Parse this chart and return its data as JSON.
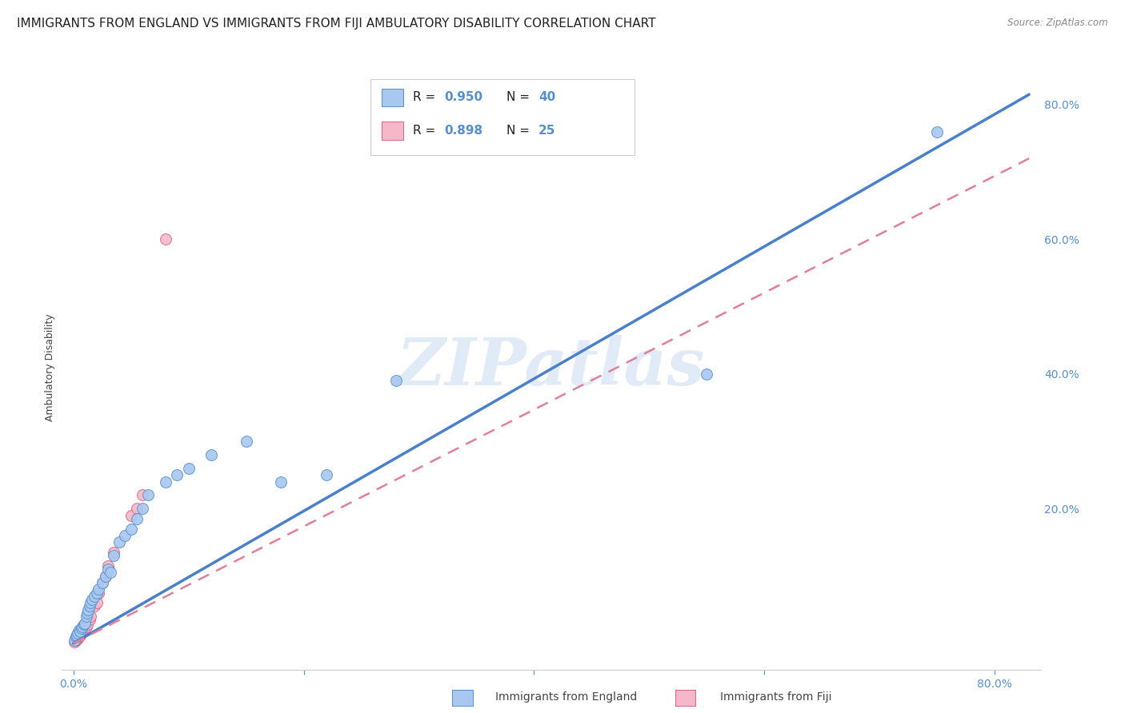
{
  "title": "IMMIGRANTS FROM ENGLAND VS IMMIGRANTS FROM FIJI AMBULATORY DISABILITY CORRELATION CHART",
  "source": "Source: ZipAtlas.com",
  "ylabel": "Ambulatory Disability",
  "x_tick_labels": [
    "0.0%",
    "",
    "",
    "",
    "80.0%"
  ],
  "y_tick_labels_right": [
    "",
    "20.0%",
    "40.0%",
    "60.0%",
    "80.0%"
  ],
  "xlim": [
    -0.01,
    0.84
  ],
  "ylim": [
    -0.04,
    0.86
  ],
  "england_color": "#A8C8F0",
  "fiji_color": "#F5B8C8",
  "england_edge_color": "#5590CC",
  "fiji_edge_color": "#E06080",
  "england_line_color": "#4A7FCC",
  "fiji_line_color": "#E08098",
  "watermark": "ZIPatlas",
  "england_scatter_x": [
    0.001,
    0.002,
    0.003,
    0.004,
    0.005,
    0.006,
    0.007,
    0.008,
    0.009,
    0.01,
    0.011,
    0.012,
    0.013,
    0.014,
    0.015,
    0.016,
    0.018,
    0.02,
    0.022,
    0.025,
    0.028,
    0.03,
    0.032,
    0.035,
    0.04,
    0.045,
    0.05,
    0.055,
    0.06,
    0.065,
    0.08,
    0.09,
    0.1,
    0.12,
    0.15,
    0.18,
    0.22,
    0.28,
    0.55,
    0.75
  ],
  "england_scatter_y": [
    0.005,
    0.01,
    0.012,
    0.015,
    0.02,
    0.018,
    0.022,
    0.025,
    0.028,
    0.03,
    0.04,
    0.045,
    0.05,
    0.055,
    0.06,
    0.065,
    0.07,
    0.075,
    0.08,
    0.09,
    0.1,
    0.11,
    0.105,
    0.13,
    0.15,
    0.16,
    0.17,
    0.185,
    0.2,
    0.22,
    0.24,
    0.25,
    0.26,
    0.28,
    0.3,
    0.24,
    0.25,
    0.39,
    0.4,
    0.76
  ],
  "fiji_scatter_x": [
    0.001,
    0.002,
    0.003,
    0.004,
    0.005,
    0.006,
    0.007,
    0.008,
    0.009,
    0.01,
    0.011,
    0.012,
    0.014,
    0.015,
    0.018,
    0.02,
    0.022,
    0.025,
    0.028,
    0.03,
    0.035,
    0.05,
    0.06,
    0.055,
    0.08
  ],
  "fiji_scatter_y": [
    0.002,
    0.004,
    0.006,
    0.008,
    0.01,
    0.012,
    0.015,
    0.018,
    0.02,
    0.022,
    0.025,
    0.028,
    0.035,
    0.04,
    0.055,
    0.06,
    0.075,
    0.09,
    0.1,
    0.115,
    0.135,
    0.19,
    0.22,
    0.2,
    0.6
  ],
  "england_line_x0": 0.0,
  "england_line_x1": 0.83,
  "england_line_y0": 0.0,
  "england_line_y1": 0.815,
  "fiji_line_x0": 0.0,
  "fiji_line_x1": 0.83,
  "fiji_line_y0": 0.0,
  "fiji_line_y1": 0.72,
  "grid_color": "#E0E0E0",
  "background_color": "#FFFFFF",
  "title_fontsize": 11,
  "axis_label_fontsize": 9,
  "tick_fontsize": 10,
  "tick_color": "#5590CC",
  "legend_r_color": "#5590CC",
  "legend_n_color": "#222222",
  "legend_england_r": "0.950",
  "legend_england_n": "40",
  "legend_fiji_r": "0.898",
  "legend_fiji_n": "25"
}
